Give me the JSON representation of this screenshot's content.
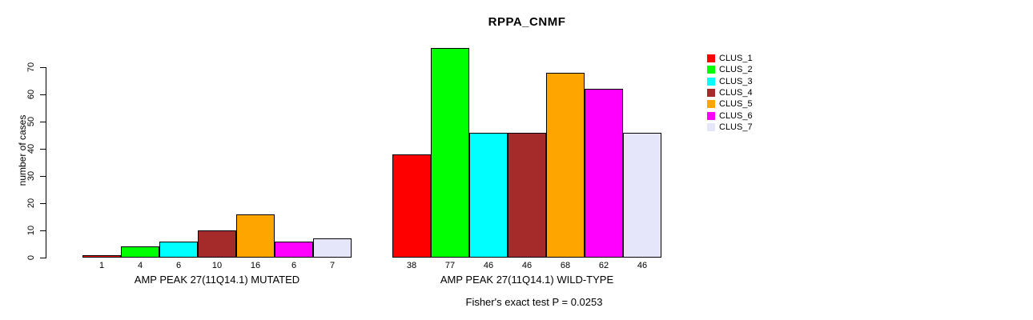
{
  "title": "RPPA_CNMF",
  "y_axis": {
    "label": "number of cases",
    "ticks": [
      0,
      10,
      20,
      30,
      40,
      50,
      60,
      70
    ]
  },
  "legend": {
    "items": [
      {
        "label": "CLUS_1",
        "color": "#FF0000"
      },
      {
        "label": "CLUS_2",
        "color": "#00FF00"
      },
      {
        "label": "CLUS_3",
        "color": "#00FFFF"
      },
      {
        "label": "CLUS_4",
        "color": "#A52A2A"
      },
      {
        "label": "CLUS_5",
        "color": "#FFA500"
      },
      {
        "label": "CLUS_6",
        "color": "#FF00FF"
      },
      {
        "label": "CLUS_7",
        "color": "#E6E6FA"
      }
    ]
  },
  "footer": "Fisher's exact test P = 0.0253",
  "chart_data": {
    "type": "bar",
    "title": "RPPA_CNMF",
    "ylabel": "number of cases",
    "ylim": [
      0,
      70
    ],
    "yticks": [
      0,
      10,
      20,
      30,
      40,
      50,
      60,
      70
    ],
    "grid": false,
    "legend_position": "right",
    "series_labels": [
      "CLUS_1",
      "CLUS_2",
      "CLUS_3",
      "CLUS_4",
      "CLUS_5",
      "CLUS_6",
      "CLUS_7"
    ],
    "series_colors": [
      "#FF0000",
      "#00FF00",
      "#00FFFF",
      "#A52A2A",
      "#FFA500",
      "#FF00FF",
      "#E6E6FA"
    ],
    "groups": [
      {
        "label": "AMP PEAK 27(11Q14.1) MUTATED",
        "values": [
          1,
          4,
          6,
          10,
          16,
          6,
          7
        ]
      },
      {
        "label": "AMP PEAK 27(11Q14.1) WILD-TYPE",
        "values": [
          38,
          77,
          46,
          46,
          68,
          62,
          46
        ]
      }
    ],
    "annotation": "Fisher's exact test P = 0.0253"
  }
}
